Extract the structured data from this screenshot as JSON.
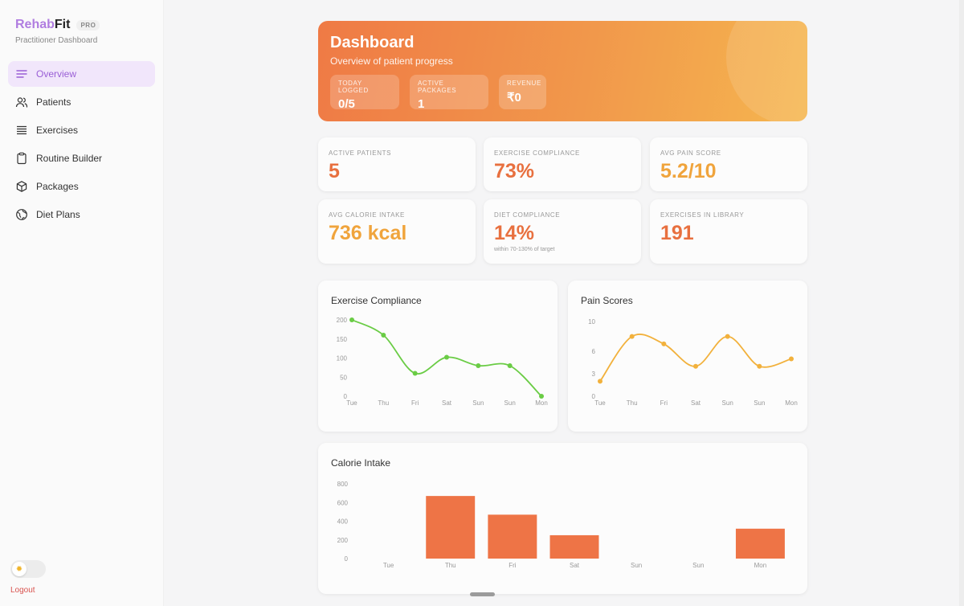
{
  "brand": {
    "name_part1": "Rehab",
    "name_part2": "Fit",
    "badge": "PRO",
    "subtitle": "Practitioner Dashboard"
  },
  "nav": [
    {
      "label": "Overview",
      "icon": "menu-lines-icon",
      "active": true
    },
    {
      "label": "Patients",
      "icon": "users-icon",
      "active": false
    },
    {
      "label": "Exercises",
      "icon": "list-icon",
      "active": false
    },
    {
      "label": "Routine Builder",
      "icon": "clipboard-icon",
      "active": false
    },
    {
      "label": "Packages",
      "icon": "box-icon",
      "active": false
    },
    {
      "label": "Diet Plans",
      "icon": "globe-icon",
      "active": false
    }
  ],
  "theme_toggle": {
    "icon": "sun-icon"
  },
  "logout": "Logout",
  "hero": {
    "title": "Dashboard",
    "subtitle": "Overview of patient progress",
    "stats": [
      {
        "label": "TODAY LOGGED",
        "value": "0/5"
      },
      {
        "label": "ACTIVE PACKAGES",
        "value": "1"
      },
      {
        "label": "REVENUE",
        "value": "₹0"
      }
    ]
  },
  "kpis": [
    {
      "label": "ACTIVE PATIENTS",
      "value": "5",
      "color": "#e8703f"
    },
    {
      "label": "EXERCISE COMPLIANCE",
      "value": "73%",
      "color": "#e8703f"
    },
    {
      "label": "AVG PAIN SCORE",
      "value": "5.2/10",
      "color": "#f0a43c"
    },
    {
      "label": "AVG CALORIE INTAKE",
      "value": "736 kcal",
      "color": "#f0a43c"
    },
    {
      "label": "DIET COMPLIANCE",
      "value": "14%",
      "color": "#e8703f",
      "note": "within 70-130% of target"
    },
    {
      "label": "EXERCISES IN LIBRARY",
      "value": "191",
      "color": "#e8703f"
    }
  ],
  "chart_data": [
    {
      "type": "line",
      "title": "Exercise Compliance",
      "categories": [
        "Tue",
        "Thu",
        "Fri",
        "Sat",
        "Sun",
        "Sun",
        "Mon"
      ],
      "values": [
        200,
        160,
        60,
        102,
        80,
        80,
        0
      ],
      "yticks": [
        0,
        50,
        100,
        150,
        200
      ],
      "ylim": [
        0,
        200
      ],
      "color": "#6acc45"
    },
    {
      "type": "line",
      "title": "Pain Scores",
      "categories": [
        "Tue",
        "Thu",
        "Fri",
        "Sat",
        "Sun",
        "Sun",
        "Mon"
      ],
      "values": [
        2,
        8,
        7,
        4,
        8,
        4,
        5
      ],
      "yticks": [
        0,
        3,
        6,
        10
      ],
      "ylim": [
        0,
        10
      ],
      "color": "#f2b13c"
    },
    {
      "type": "bar",
      "title": "Calorie Intake",
      "categories": [
        "Tue",
        "Thu",
        "Fri",
        "Sat",
        "Sun",
        "Sun",
        "Mon"
      ],
      "values": [
        0,
        670,
        470,
        250,
        0,
        0,
        320
      ],
      "yticks": [
        0,
        200,
        400,
        600,
        800
      ],
      "ylim": [
        0,
        800
      ],
      "color": "#ee7446"
    }
  ]
}
